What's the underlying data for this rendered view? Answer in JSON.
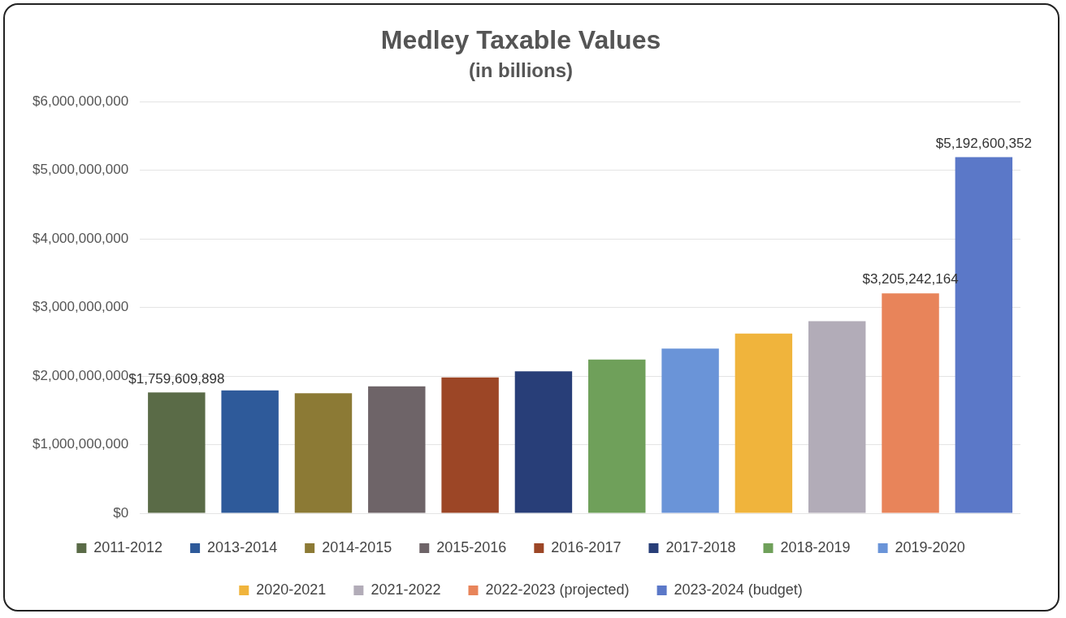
{
  "chart_data": {
    "type": "bar",
    "title": "Medley Taxable Values",
    "subtitle": "(in billions)",
    "categories": [
      null,
      null,
      null,
      null,
      null,
      null,
      null,
      null,
      null,
      null,
      null,
      null
    ],
    "series": [
      {
        "name": "2011-2012",
        "color": "#5a6b47",
        "values": [
          1759609898,
          null,
          null,
          null,
          null,
          null,
          null,
          null,
          null,
          null,
          null,
          null
        ],
        "value_labels": [
          "$1,759,609,898",
          null,
          null,
          null,
          null,
          null,
          null,
          null,
          null,
          null,
          null,
          null
        ]
      },
      {
        "name": "2013-2014",
        "color": "#2e5a9a",
        "values": [
          null,
          1790000000,
          null,
          null,
          null,
          null,
          null,
          null,
          null,
          null,
          null,
          null
        ]
      },
      {
        "name": "2014-2015",
        "color": "#8c7a35",
        "values": [
          null,
          null,
          1750000000,
          null,
          null,
          null,
          null,
          null,
          null,
          null,
          null,
          null
        ]
      },
      {
        "name": "2015-2016",
        "color": "#6e6468",
        "values": [
          null,
          null,
          null,
          1850000000,
          null,
          null,
          null,
          null,
          null,
          null,
          null,
          null
        ]
      },
      {
        "name": "2016-2017",
        "color": "#9c4626",
        "values": [
          null,
          null,
          null,
          null,
          1980000000,
          null,
          null,
          null,
          null,
          null,
          null,
          null
        ]
      },
      {
        "name": "2017-2018",
        "color": "#283e78",
        "values": [
          null,
          null,
          null,
          null,
          null,
          2070000000,
          null,
          null,
          null,
          null,
          null,
          null
        ]
      },
      {
        "name": "2018-2019",
        "color": "#6fa05a",
        "values": [
          null,
          null,
          null,
          null,
          null,
          null,
          2240000000,
          null,
          null,
          null,
          null,
          null
        ]
      },
      {
        "name": "2019-2020",
        "color": "#6a94d8",
        "values": [
          null,
          null,
          null,
          null,
          null,
          null,
          null,
          2400000000,
          null,
          null,
          null,
          null
        ]
      },
      {
        "name": "2020-2021",
        "color": "#f0b43c",
        "values": [
          null,
          null,
          null,
          null,
          null,
          null,
          null,
          null,
          2620000000,
          null,
          null,
          null
        ]
      },
      {
        "name": "2021-2022",
        "color": "#b2acb8",
        "values": [
          null,
          null,
          null,
          null,
          null,
          null,
          null,
          null,
          null,
          2800000000,
          null,
          null
        ]
      },
      {
        "name": "2022-2023 (projected)",
        "color": "#e8845a",
        "values": [
          null,
          null,
          null,
          null,
          null,
          null,
          null,
          null,
          null,
          null,
          3205242164,
          null
        ],
        "value_labels": [
          null,
          null,
          null,
          null,
          null,
          null,
          null,
          null,
          null,
          null,
          "$3,205,242,164",
          null
        ]
      },
      {
        "name": "2023-2024 (budget)",
        "color": "#5b78c8",
        "values": [
          null,
          null,
          null,
          null,
          null,
          null,
          null,
          null,
          null,
          null,
          null,
          5192600352
        ],
        "value_labels": [
          null,
          null,
          null,
          null,
          null,
          null,
          null,
          null,
          null,
          null,
          null,
          "$5,192,600,352"
        ]
      }
    ],
    "ylim": [
      0,
      6000000000
    ],
    "yticks": [
      {
        "value": 0,
        "label": "$0"
      },
      {
        "value": 1000000000,
        "label": "$1,000,000,000"
      },
      {
        "value": 2000000000,
        "label": "$2,000,000,000"
      },
      {
        "value": 3000000000,
        "label": "$3,000,000,000"
      },
      {
        "value": 4000000000,
        "label": "$4,000,000,000"
      },
      {
        "value": 5000000000,
        "label": "$5,000,000,000"
      },
      {
        "value": 6000000000,
        "label": "$6,000,000,000"
      }
    ],
    "grid": "y",
    "legend": "bottom",
    "tick_labels": "y"
  }
}
